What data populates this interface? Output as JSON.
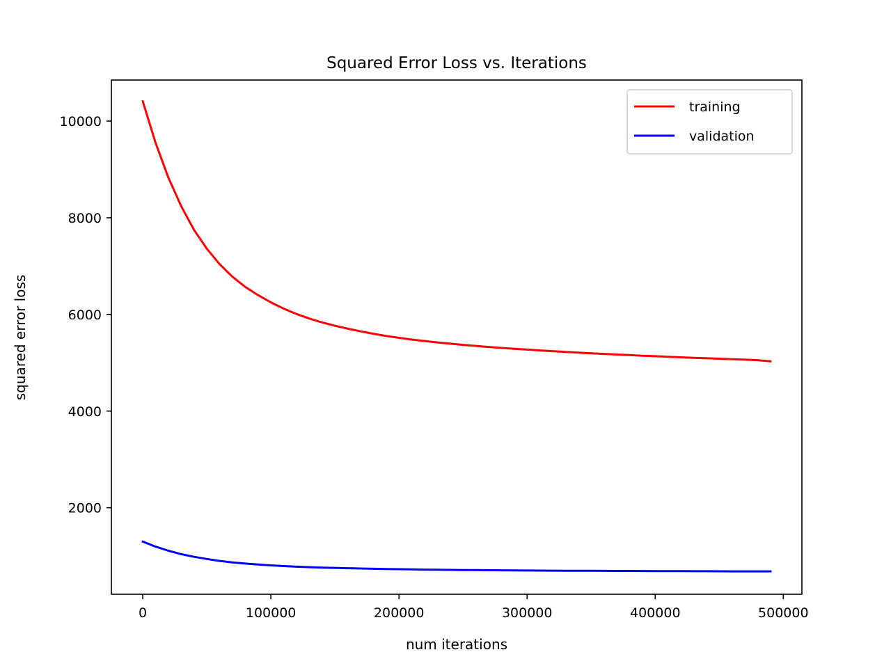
{
  "chart_data": {
    "type": "line",
    "title": "Squared Error Loss vs. Iterations",
    "xlabel": "num iterations",
    "ylabel": "squared error loss",
    "xlim": [
      -24500,
      514500
    ],
    "ylim": [
      210,
      10850
    ],
    "xticks": [
      0,
      100000,
      200000,
      300000,
      400000,
      500000
    ],
    "yticks": [
      2000,
      4000,
      6000,
      8000,
      10000
    ],
    "grid": false,
    "legend_position": "top-right",
    "x": [
      0,
      10000,
      20000,
      30000,
      40000,
      50000,
      60000,
      70000,
      80000,
      90000,
      100000,
      110000,
      120000,
      130000,
      140000,
      150000,
      160000,
      170000,
      180000,
      190000,
      200000,
      210000,
      220000,
      230000,
      240000,
      250000,
      260000,
      270000,
      280000,
      290000,
      300000,
      310000,
      320000,
      330000,
      340000,
      350000,
      360000,
      370000,
      380000,
      390000,
      400000,
      410000,
      420000,
      430000,
      440000,
      450000,
      460000,
      470000,
      480000,
      490000
    ],
    "series": [
      {
        "name": "training",
        "color": "#ff0000",
        "values": [
          10410,
          9550,
          8830,
          8240,
          7750,
          7360,
          7040,
          6780,
          6570,
          6400,
          6250,
          6120,
          6010,
          5915,
          5835,
          5765,
          5705,
          5650,
          5600,
          5555,
          5515,
          5480,
          5450,
          5420,
          5395,
          5370,
          5348,
          5327,
          5307,
          5290,
          5272,
          5255,
          5240,
          5225,
          5210,
          5196,
          5183,
          5170,
          5158,
          5146,
          5135,
          5124,
          5113,
          5103,
          5093,
          5083,
          5073,
          5063,
          5053,
          5030
        ]
      },
      {
        "name": "validation",
        "color": "#0000ff",
        "values": [
          1300,
          1195,
          1110,
          1040,
          985,
          940,
          900,
          870,
          845,
          825,
          808,
          793,
          780,
          770,
          762,
          755,
          748,
          742,
          737,
          732,
          728,
          724,
          720,
          717,
          714,
          711,
          709,
          707,
          705,
          703,
          701,
          700,
          698,
          697,
          696,
          695,
          694,
          693,
          692,
          691,
          690,
          689,
          688,
          687,
          686,
          685,
          684,
          684,
          683,
          683
        ]
      }
    ]
  }
}
